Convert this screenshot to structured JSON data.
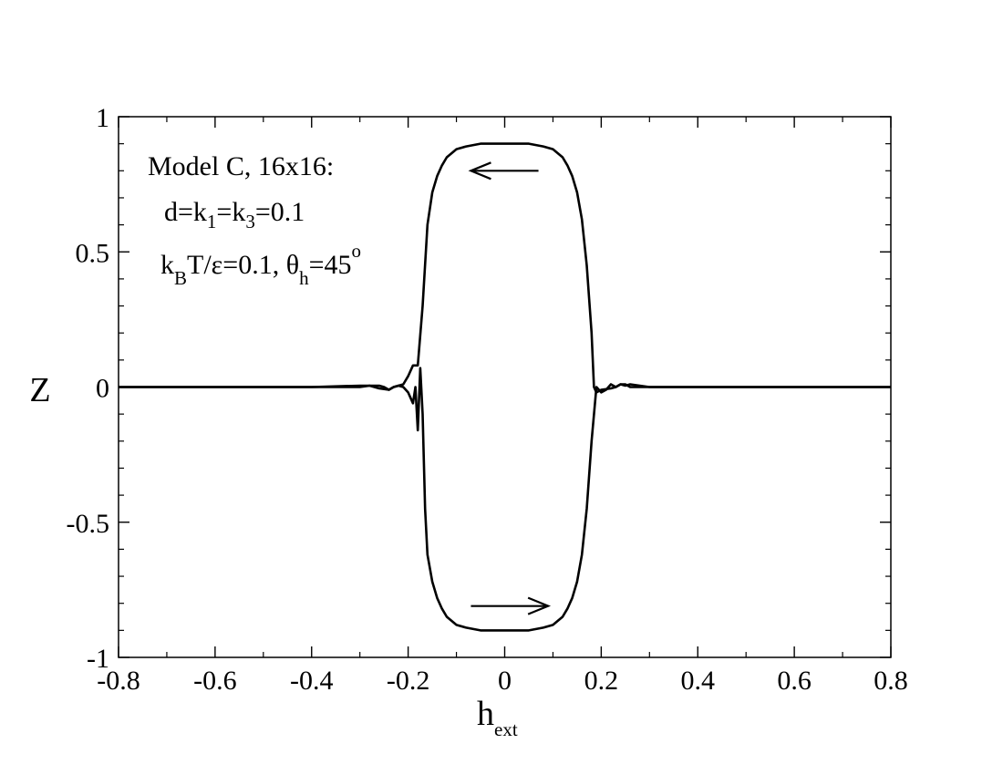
{
  "chart_data": {
    "type": "line",
    "title": "",
    "xlabel": {
      "base": "h",
      "sub": "ext"
    },
    "ylabel": "Z",
    "xlim": [
      -0.8,
      0.8
    ],
    "ylim": [
      -1,
      1
    ],
    "x_ticks": [
      -0.8,
      -0.6,
      -0.4,
      -0.2,
      0,
      0.2,
      0.4,
      0.6,
      0.8
    ],
    "x_tick_labels": [
      "-0.8",
      "-0.6",
      "-0.4",
      "-0.2",
      "0",
      "0.2",
      "0.4",
      "0.6",
      "0.8"
    ],
    "y_ticks": [
      -1,
      -0.5,
      0,
      0.5,
      1
    ],
    "y_tick_labels": [
      "-1",
      "-0.5",
      "0",
      "0.5",
      "1"
    ],
    "grid": false,
    "line_color": "#000000",
    "annotation": {
      "line1": "Model C, 16x16:",
      "line2": {
        "t1": "d=k",
        "s1": "1",
        "t2": "=k",
        "s2": "3",
        "t3": "=0.1"
      },
      "line3": {
        "t1": "k",
        "s1": "B",
        "t2": "T/ε=0.1,  θ",
        "s2": "h",
        "t3": "=45",
        "sup": "o"
      }
    },
    "arrows": [
      {
        "direction": "left",
        "x_from": 0.07,
        "x_to": -0.07,
        "y": 0.8
      },
      {
        "direction": "right",
        "x_from": -0.07,
        "x_to": 0.09,
        "y": -0.81
      }
    ],
    "series": [
      {
        "values_x": [
          0.8,
          0.6,
          0.4,
          0.3,
          0.28,
          0.26,
          0.25,
          0.24,
          0.23,
          0.22,
          0.2,
          0.19,
          0.185,
          0.18,
          0.17,
          0.16,
          0.15,
          0.14,
          0.13,
          0.12,
          0.1,
          0.08,
          0.05,
          0.0,
          -0.05,
          -0.08,
          -0.1,
          -0.12,
          -0.13,
          -0.14,
          -0.15,
          -0.16,
          -0.17,
          -0.18,
          -0.19,
          -0.2,
          -0.21,
          -0.22,
          -0.23,
          -0.24,
          -0.25,
          -0.26,
          -0.3,
          -0.4,
          -0.6,
          -0.8
        ],
        "values_y": [
          0.0,
          0.0,
          0.0,
          0.0,
          0.005,
          0.01,
          0.005,
          0.01,
          0.0,
          -0.005,
          -0.01,
          -0.02,
          0.0,
          0.2,
          0.45,
          0.62,
          0.72,
          0.78,
          0.82,
          0.85,
          0.88,
          0.89,
          0.9,
          0.9,
          0.9,
          0.89,
          0.88,
          0.85,
          0.82,
          0.78,
          0.72,
          0.6,
          0.3,
          0.08,
          0.08,
          0.04,
          0.01,
          0.005,
          0.0,
          -0.01,
          0.0,
          0.005,
          0.005,
          0.0,
          0.0,
          0.0
        ]
      },
      {
        "values_x": [
          -0.8,
          -0.6,
          -0.4,
          -0.3,
          -0.28,
          -0.26,
          -0.24,
          -0.23,
          -0.22,
          -0.21,
          -0.2,
          -0.19,
          -0.185,
          -0.18,
          -0.175,
          -0.17,
          -0.165,
          -0.16,
          -0.15,
          -0.14,
          -0.13,
          -0.12,
          -0.1,
          -0.08,
          -0.05,
          0.0,
          0.05,
          0.08,
          0.1,
          0.12,
          0.13,
          0.14,
          0.15,
          0.16,
          0.17,
          0.18,
          0.19,
          0.2,
          0.21,
          0.22,
          0.23,
          0.24,
          0.25,
          0.26,
          0.3,
          0.4,
          0.6,
          0.8
        ],
        "values_y": [
          0.0,
          0.0,
          0.0,
          0.0,
          0.005,
          -0.005,
          -0.01,
          0.0,
          0.005,
          0.0,
          -0.02,
          -0.06,
          0.0,
          -0.16,
          0.07,
          -0.1,
          -0.45,
          -0.62,
          -0.72,
          -0.78,
          -0.82,
          -0.85,
          -0.88,
          -0.89,
          -0.9,
          -0.9,
          -0.9,
          -0.89,
          -0.88,
          -0.85,
          -0.82,
          -0.78,
          -0.72,
          -0.62,
          -0.45,
          -0.2,
          0.0,
          -0.02,
          -0.01,
          0.01,
          0.0,
          0.01,
          0.01,
          0.0,
          0.0,
          0.0,
          0.0,
          0.0
        ]
      }
    ]
  }
}
